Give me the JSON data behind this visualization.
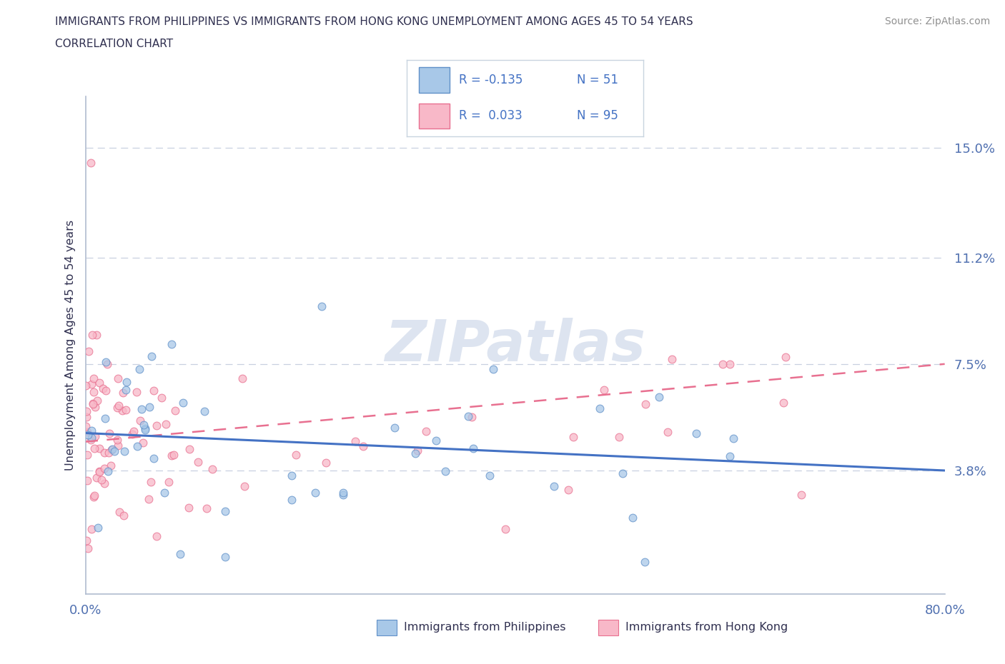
{
  "title_line1": "IMMIGRANTS FROM PHILIPPINES VS IMMIGRANTS FROM HONG KONG UNEMPLOYMENT AMONG AGES 45 TO 54 YEARS",
  "title_line2": "CORRELATION CHART",
  "source_text": "Source: ZipAtlas.com",
  "ylabel": "Unemployment Among Ages 45 to 54 years",
  "xlim": [
    0.0,
    0.8
  ],
  "ylim": [
    -0.005,
    0.168
  ],
  "yticks": [
    0.038,
    0.075,
    0.112,
    0.15
  ],
  "ytick_labels": [
    "3.8%",
    "7.5%",
    "11.2%",
    "15.0%"
  ],
  "xticks": [
    0.0,
    0.1,
    0.2,
    0.3,
    0.4,
    0.5,
    0.6,
    0.7,
    0.8
  ],
  "xtick_labels": [
    "0.0%",
    "",
    "",
    "",
    "",
    "",
    "",
    "",
    "80.0%"
  ],
  "philippines_color": "#a8c8e8",
  "philippines_edge_color": "#6090c8",
  "hongkong_color": "#f8b8c8",
  "hongkong_edge_color": "#e87090",
  "philippines_line_color": "#4472c4",
  "hongkong_line_color": "#e87090",
  "watermark_color": "#dde4f0",
  "axis_color": "#b0bcd0",
  "tick_label_color": "#5070b0",
  "title_color": "#303050",
  "legend_r_color": "#4472c4",
  "grid_color": "#c8d0e0",
  "source_color": "#909090",
  "phil_trend_start_y": 0.051,
  "phil_trend_end_y": 0.038,
  "hk_trend_start_y": 0.048,
  "hk_trend_end_y": 0.075
}
